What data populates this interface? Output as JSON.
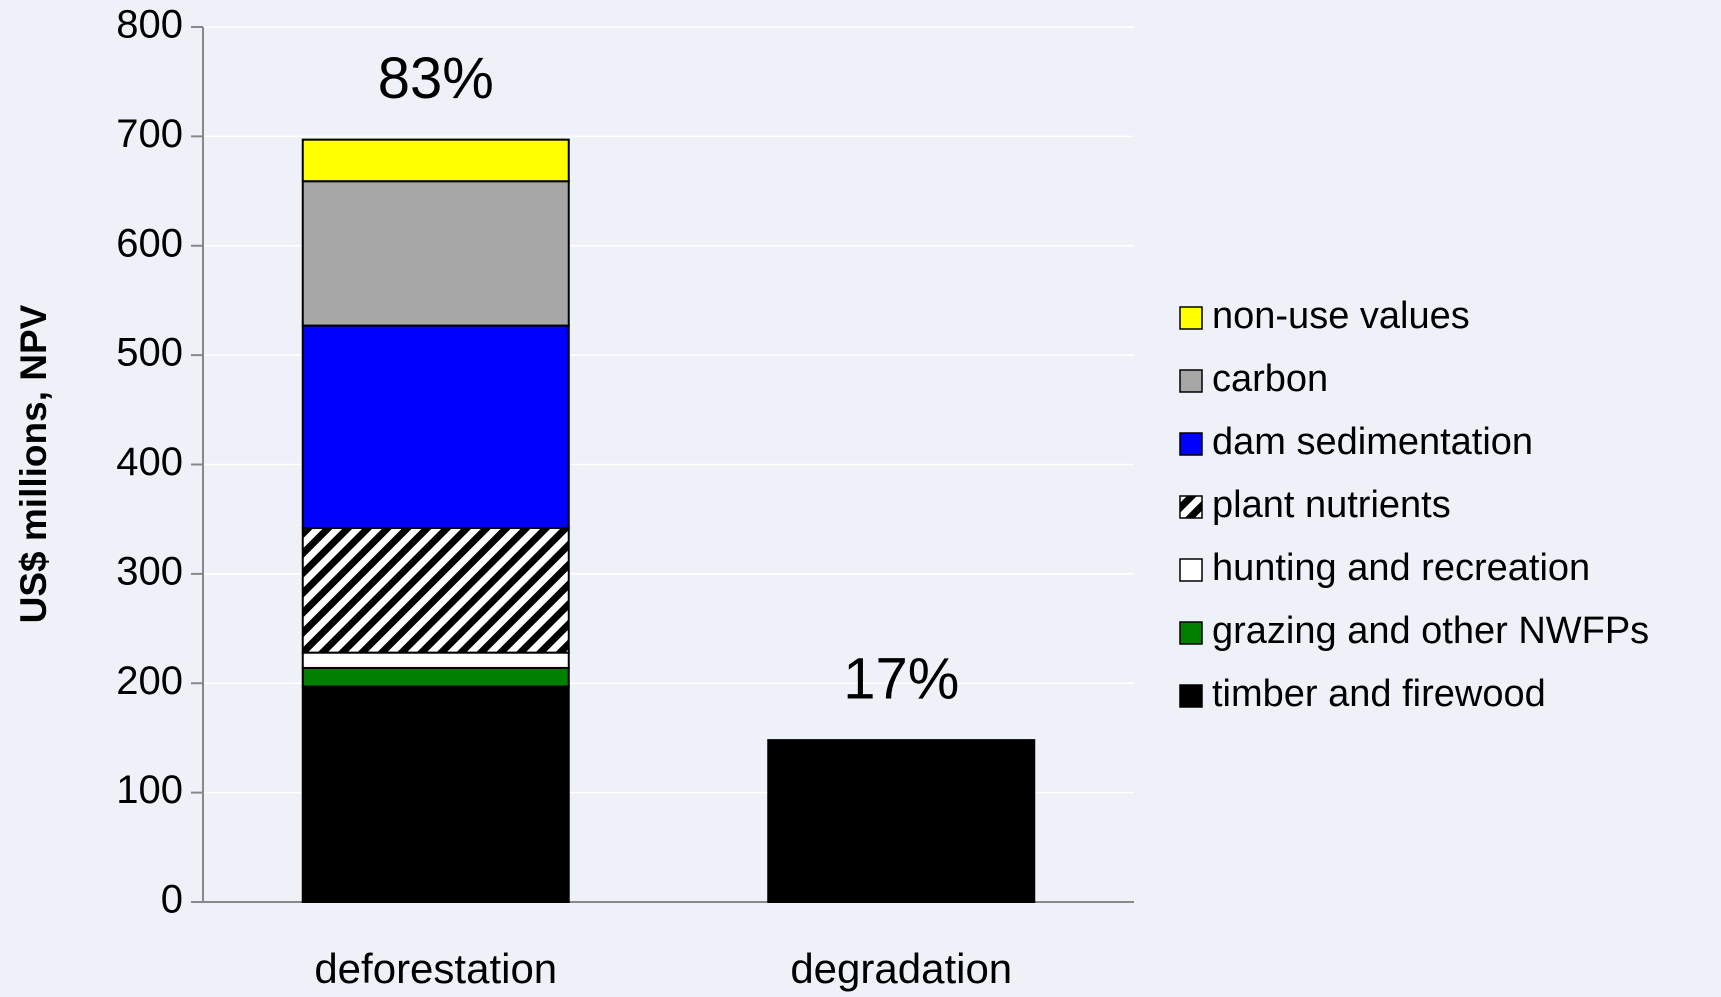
{
  "chart_data": {
    "type": "stacked_bar",
    "y_label": "US$ millions, NPV",
    "categories": [
      "deforestation",
      "degradation"
    ],
    "bar_labels": [
      "83%",
      "17%"
    ],
    "series": [
      {
        "name": "timber and firewood",
        "color": "#000000",
        "values": [
          197,
          148
        ]
      },
      {
        "name": "grazing and other NWFPs",
        "color": "#008000",
        "values": [
          17,
          0
        ]
      },
      {
        "name": "hunting and recreation",
        "color": "#ffffff",
        "values": [
          14,
          0
        ]
      },
      {
        "name": "plant nutrients",
        "color": "#000000",
        "pattern": "diagonal-stripes",
        "values": [
          114,
          0
        ]
      },
      {
        "name": "dam sedimentation",
        "color": "#0000ff",
        "values": [
          185,
          0
        ]
      },
      {
        "name": "carbon",
        "color": "#a6a6a6",
        "values": [
          132,
          0
        ]
      },
      {
        "name": "non-use values",
        "color": "#ffff00",
        "values": [
          38,
          0
        ]
      }
    ],
    "ylim": [
      0,
      800
    ],
    "yticks": [
      0,
      100,
      200,
      300,
      400,
      500,
      600,
      700,
      800
    ],
    "grid": true,
    "legend": "right"
  }
}
